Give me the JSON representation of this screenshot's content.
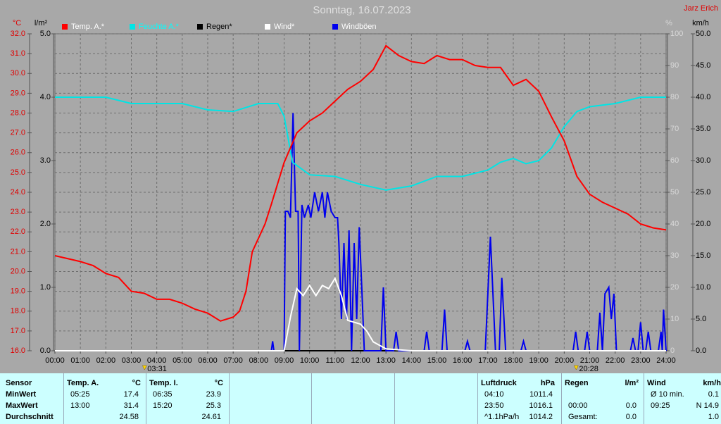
{
  "chart_data": {
    "type": "line",
    "title": "Sonntag, 16.07.2023",
    "author": "Jarz Erich",
    "xlim": [
      0,
      24
    ],
    "xticks": [
      {
        "value": 0,
        "label": "00:00"
      },
      {
        "value": 1,
        "label": "01:00"
      },
      {
        "value": 2,
        "label": "02:00"
      },
      {
        "value": 3,
        "label": "03:00"
      },
      {
        "value": 4,
        "label": "04:00"
      },
      {
        "value": 5,
        "label": "05:00"
      },
      {
        "value": 6,
        "label": "06:00"
      },
      {
        "value": 7,
        "label": "07:00"
      },
      {
        "value": 8,
        "label": "08:00"
      },
      {
        "value": 9,
        "label": "09:00"
      },
      {
        "value": 10,
        "label": "10:00"
      },
      {
        "value": 11,
        "label": "11:00"
      },
      {
        "value": 12,
        "label": "12:00"
      },
      {
        "value": 13,
        "label": "13:00"
      },
      {
        "value": 14,
        "label": "14:00"
      },
      {
        "value": 15,
        "label": "15:00"
      },
      {
        "value": 16,
        "label": "16:00"
      },
      {
        "value": 17,
        "label": "17:00"
      },
      {
        "value": 18,
        "label": "18:00"
      },
      {
        "value": 19,
        "label": "19:00"
      },
      {
        "value": 20,
        "label": "20:00"
      },
      {
        "value": 21,
        "label": "21:00"
      },
      {
        "value": 22,
        "label": "22:00"
      },
      {
        "value": 23,
        "label": "23:00"
      },
      {
        "value": 24,
        "label": "24:00"
      }
    ],
    "grid": true,
    "axes": [
      {
        "label": "°C",
        "color": "#e00000",
        "lim": [
          16,
          32
        ],
        "ticks": [
          {
            "value": 16,
            "label": "16.0"
          },
          {
            "value": 17,
            "label": "17.0"
          },
          {
            "value": 18,
            "label": "18.0"
          },
          {
            "value": 19,
            "label": "19.0"
          },
          {
            "value": 20,
            "label": "20.0"
          },
          {
            "value": 21,
            "label": "21.0"
          },
          {
            "value": 22,
            "label": "22.0"
          },
          {
            "value": 23,
            "label": "23.0"
          },
          {
            "value": 24,
            "label": "24.0"
          },
          {
            "value": 25,
            "label": "25.0"
          },
          {
            "value": 26,
            "label": "26.0"
          },
          {
            "value": 27,
            "label": "27.0"
          },
          {
            "value": 28,
            "label": "28.0"
          },
          {
            "value": 29,
            "label": "29.0"
          },
          {
            "value": 30,
            "label": "30.0"
          },
          {
            "value": 31,
            "label": "31.0"
          },
          {
            "value": 32,
            "label": "32.0"
          }
        ]
      },
      {
        "label": "l/m²",
        "color": "#000000",
        "lim": [
          0,
          5
        ],
        "ticks": [
          {
            "value": 0,
            "label": "0.0"
          },
          {
            "value": 1,
            "label": "1.0"
          },
          {
            "value": 2,
            "label": "2.0"
          },
          {
            "value": 3,
            "label": "3.0"
          },
          {
            "value": 4,
            "label": "4.0"
          },
          {
            "value": 5,
            "label": "5.0"
          }
        ]
      },
      {
        "label": "%",
        "color": "#d8d8d8",
        "lim": [
          0,
          100
        ],
        "ticks": [
          0,
          10,
          20,
          30,
          40,
          50,
          60,
          70,
          80,
          90,
          100
        ]
      },
      {
        "label": "km/h",
        "color": "#000000",
        "lim": [
          0,
          50
        ],
        "ticks": [
          {
            "value": 0,
            "label": "0.0"
          },
          {
            "value": 5,
            "label": "5.0"
          },
          {
            "value": 10,
            "label": "10.0"
          },
          {
            "value": 15,
            "label": "15.0"
          },
          {
            "value": 20,
            "label": "20.0"
          },
          {
            "value": 25,
            "label": "25.0"
          },
          {
            "value": 30,
            "label": "30.0"
          },
          {
            "value": 35,
            "label": "35.0"
          },
          {
            "value": 40,
            "label": "40.0"
          },
          {
            "value": 45,
            "label": "45.0"
          },
          {
            "value": 50,
            "label": "50.0"
          }
        ]
      }
    ],
    "series": [
      {
        "name": "Temp. A.*",
        "color": "#ff0000",
        "label_color": "#ffffff",
        "axis": 0,
        "x": [
          0,
          1,
          1.5,
          2,
          2.5,
          3,
          3.5,
          4,
          4.5,
          5,
          5.5,
          6,
          6.5,
          7,
          7.25,
          7.5,
          7.75,
          8.25,
          8.5,
          9,
          9.5,
          10,
          10.5,
          11,
          11.5,
          12,
          12.5,
          13,
          13.5,
          14,
          14.5,
          15,
          15.5,
          16,
          16.5,
          17,
          17.5,
          18,
          18.5,
          19,
          19.5,
          20,
          20.5,
          21,
          21.5,
          22,
          22.5,
          23,
          23.5,
          24
        ],
        "values": [
          20.8,
          20.5,
          20.3,
          19.9,
          19.7,
          19.0,
          18.9,
          18.6,
          18.6,
          18.4,
          18.1,
          17.9,
          17.5,
          17.7,
          18.0,
          19.0,
          21.0,
          22.4,
          23.4,
          25.5,
          27.0,
          27.6,
          28.0,
          28.6,
          29.2,
          29.6,
          30.2,
          31.4,
          30.9,
          30.6,
          30.5,
          30.9,
          30.7,
          30.7,
          30.4,
          30.3,
          30.3,
          29.4,
          29.7,
          29.1,
          27.8,
          26.6,
          24.8,
          23.9,
          23.5,
          23.2,
          22.9,
          22.4,
          22.2,
          22.1
        ]
      },
      {
        "name": "Feuchte A.*",
        "color": "#00e5e5",
        "label_color": "#00ffff",
        "axis": 2,
        "x": [
          0,
          2,
          3,
          5,
          6,
          7,
          8,
          8.75,
          9,
          9.33,
          10,
          11,
          12,
          13,
          14,
          15,
          16,
          17,
          17.5,
          18,
          18.5,
          19,
          19.5,
          20,
          20.5,
          21,
          22,
          23,
          24
        ],
        "values": [
          80,
          80,
          78,
          78,
          76,
          75.5,
          78,
          78,
          74,
          59.5,
          55.5,
          55,
          52.5,
          50.7,
          52,
          55,
          55,
          57,
          59.5,
          60.7,
          59,
          60,
          64,
          70.7,
          75.5,
          77,
          78,
          80,
          80
        ]
      },
      {
        "name": "Regen*",
        "color": "#000000",
        "label_color": "#000000",
        "axis": 1,
        "x": [
          0,
          24
        ],
        "values": [
          0,
          0
        ]
      },
      {
        "name": "Wind*",
        "color": "#ffffff",
        "label_color": "#ffffff",
        "axis": 3,
        "x": [
          0,
          9,
          9.25,
          9.5,
          9.75,
          10,
          10.25,
          10.5,
          10.75,
          11,
          11.25,
          11.5,
          12,
          12.25,
          12.5,
          13,
          14,
          24
        ],
        "values": [
          0,
          0,
          5.3,
          9.8,
          8.7,
          10.3,
          8.7,
          10.3,
          9.8,
          11.4,
          8.7,
          4.8,
          4.2,
          3.1,
          1.4,
          0.3,
          0,
          0
        ]
      },
      {
        "name": "Windböen",
        "color": "#0000ee",
        "label_color": "#ffffff",
        "axis": 3,
        "x": [
          0,
          8.5,
          8.55,
          8.6,
          9.0,
          9.05,
          9.15,
          9.25,
          9.35,
          9.45,
          9.55,
          9.6,
          9.7,
          9.8,
          9.95,
          10.05,
          10.2,
          10.35,
          10.5,
          10.6,
          10.7,
          10.85,
          11.0,
          11.1,
          11.15,
          11.25,
          11.35,
          11.45,
          11.55,
          11.65,
          11.75,
          11.85,
          11.95,
          12.05,
          12.15,
          12.8,
          12.9,
          13.0,
          13.3,
          13.4,
          13.5,
          14.5,
          14.6,
          14.7,
          15.2,
          15.3,
          15.4,
          16.1,
          16.2,
          16.3,
          16.9,
          17.1,
          17.3,
          17.45,
          17.55,
          17.7,
          18.3,
          18.4,
          18.5,
          20.35,
          20.45,
          20.55,
          20.8,
          20.9,
          21.0,
          21.3,
          21.4,
          21.5,
          21.6,
          21.75,
          21.85,
          21.95,
          22.05,
          22.6,
          22.7,
          22.8,
          22.9,
          23.0,
          23.1,
          23.2,
          23.3,
          23.4,
          23.7,
          23.8,
          23.85,
          23.9,
          24.0
        ],
        "values": [
          0,
          0,
          1.5,
          0,
          0,
          22,
          22,
          21,
          37.5,
          22,
          22,
          0,
          23,
          21,
          23,
          21,
          25,
          22,
          25,
          21,
          25,
          22,
          21,
          21,
          17,
          5,
          17,
          5,
          19,
          0,
          17,
          5,
          19.5,
          10,
          0,
          0,
          10,
          0,
          0,
          3,
          0,
          0,
          3,
          0,
          0,
          6.5,
          0,
          0,
          1.5,
          0,
          0,
          18,
          0,
          0,
          11.5,
          0,
          0,
          1.5,
          0,
          0,
          3,
          0,
          0,
          3,
          0,
          0,
          6,
          0,
          9,
          10,
          5,
          9,
          0,
          0,
          2,
          0,
          0,
          4.5,
          0,
          0,
          3,
          0,
          0,
          3,
          0,
          6.5,
          0
        ]
      }
    ],
    "annotations": [
      {
        "x": 3.52,
        "label": "03:31"
      },
      {
        "x": 20.47,
        "label": "20:28"
      }
    ]
  },
  "stats": {
    "sensor": {
      "header": "Sensor",
      "rows": [
        "MinWert",
        "MaxWert",
        "Durchschnitt"
      ]
    },
    "blocks": [
      {
        "header": "Temp. A.",
        "unit": "°C",
        "rows": [
          [
            "05:25",
            "17.4"
          ],
          [
            "13:00",
            "31.4"
          ],
          [
            null,
            "24.58"
          ]
        ]
      },
      {
        "header": "Temp. I.",
        "unit": "°C",
        "rows": [
          [
            "06:35",
            "23.9"
          ],
          [
            "15:20",
            "25.3"
          ],
          [
            null,
            "24.61"
          ]
        ]
      },
      {
        "header": "Luftdruck",
        "unit": "hPa",
        "rows": [
          [
            "04:10",
            "1011.4"
          ],
          [
            "23:50",
            "1016.1"
          ],
          [
            "^1.1hPa/h",
            "1014.2"
          ]
        ]
      },
      {
        "header": "Regen",
        "unit": "l/m²",
        "rows": [
          [
            null,
            null
          ],
          [
            "00:00",
            "0.0"
          ],
          [
            "Gesamt:",
            "0.0"
          ]
        ]
      },
      {
        "header": "Wind",
        "unit": "km/h",
        "rows": [
          [
            "Ø 10 min.",
            "0.1"
          ],
          [
            "09:25",
            "N 14.9"
          ],
          [
            null,
            "1.0"
          ]
        ]
      }
    ]
  }
}
